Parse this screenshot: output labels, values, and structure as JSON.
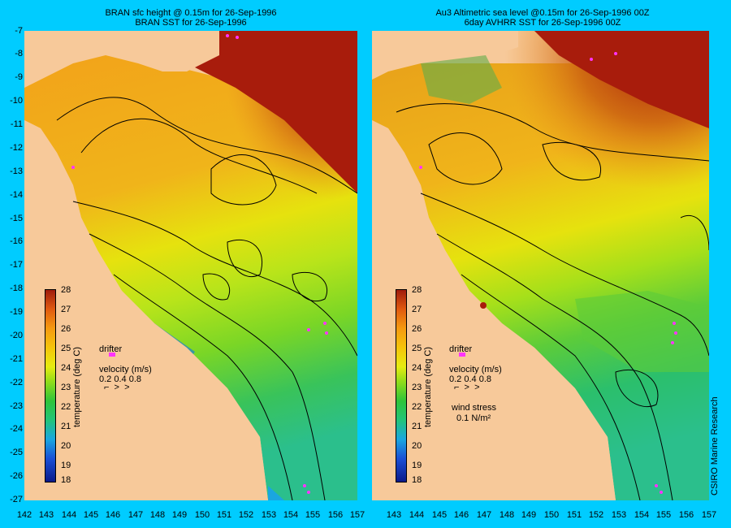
{
  "left": {
    "title1": "BRAN sfc height @ 0.15m for 26-Sep-1996",
    "title2": "BRAN SST for 26-Sep-1996"
  },
  "right": {
    "title1": "Au3 Altimetric sea level  @0.15m  for 26-Sep-1996 00Z",
    "title2": "6day AVHRR SST for 26-Sep-1996 00Z"
  },
  "y_labels": [
    "-7",
    "-8",
    "-9",
    "-10",
    "-11",
    "-12",
    "-13",
    "-14",
    "-15",
    "-16",
    "-17",
    "-18",
    "-19",
    "-20",
    "-21",
    "-22",
    "-23",
    "-24",
    "-25",
    "-26",
    "-27"
  ],
  "x_labels_left": [
    "142",
    "143",
    "144",
    "145",
    "146",
    "147",
    "148",
    "149",
    "150",
    "151",
    "152",
    "153",
    "154",
    "155",
    "156",
    "157"
  ],
  "x_labels_right": [
    "143",
    "144",
    "145",
    "146",
    "147",
    "148",
    "149",
    "150",
    "151",
    "152",
    "153",
    "154",
    "155",
    "156",
    "157"
  ],
  "colorbar": {
    "ticks": [
      "28",
      "27",
      "26",
      "25",
      "24",
      "23",
      "22",
      "21",
      "20",
      "19",
      "18"
    ],
    "unit": "temperature (deg C)"
  },
  "legend": {
    "drifter": "drifter",
    "velocity": "velocity (m/s)",
    "velocity_values": "0.2 0.4 0.8",
    "wind": "wind stress",
    "wind_value": "0.1 N/m²"
  },
  "credit": "CSIRO Marine Research"
}
